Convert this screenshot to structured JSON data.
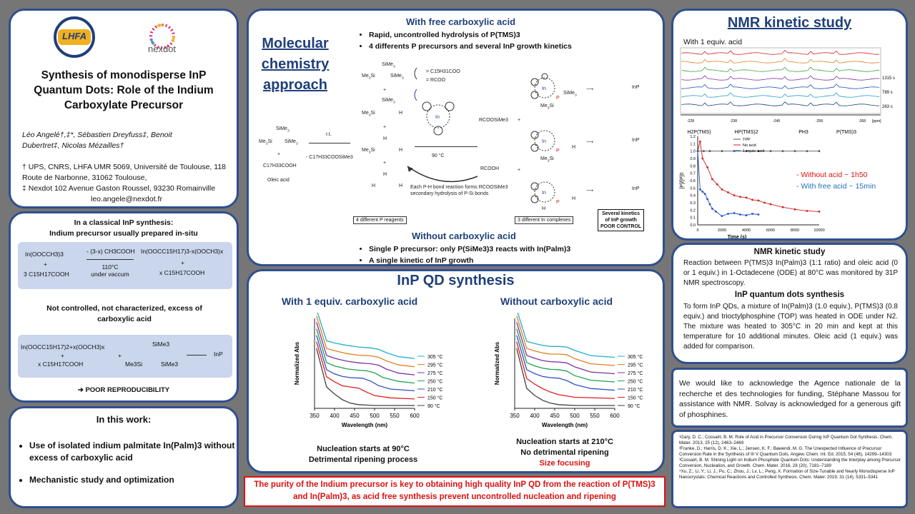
{
  "colors": {
    "panel_border": "#2f4f8f",
    "title_blue": "#1f3f7a",
    "accent_red": "#d11111",
    "bg": "#767676"
  },
  "logos": {
    "lhfa": "LHFA",
    "nexdot": "nexdot"
  },
  "title": {
    "line1": "Synthesis of monodisperse InP",
    "line2": "Quantum Dots: Role of the Indium",
    "line3": "Carboxylate Precursor"
  },
  "authors": {
    "line1": "Léo Angelé†,‡*,  Sébastien Dreyfuss‡,  Benoit",
    "line2": "Dubertret‡,  Nicolas Mézailles†"
  },
  "affiliations": {
    "a1": "† UPS, CNRS, LHFA UMR 5069, Université de Toulouse, 118 Route de Narbonne, 31062 Toulouse,",
    "a2": "‡ Nexdot 102 Avenue Gaston Roussel, 93230 Romainville",
    "email": "leo.angele@nexdot.fr"
  },
  "classical": {
    "heading1": "In a classical  InP synthesis:",
    "heading2": "Indium precursor usually  prepared in-situ",
    "r1_left": "In(OOCCH3)3",
    "r1_plus": "+",
    "r1_acid": "3 C15H17COOH",
    "r1_above": "- (3-x) CH3COOH",
    "r1_below1": "110°C",
    "r1_below2": "under vaccum",
    "r1_prod": "In(OOCC15H17)3-x(OOCH3)x",
    "r1_prod_plus": "+",
    "r1_prod2": "x C15H17COOH",
    "note": "Not controlled, not characterized, excess of carboxylic  acid",
    "r2_left": "In(OOCC15H17)2+x(OOCH3)x",
    "r2_plus": "+",
    "r2_acid": "x C15H17COOH",
    "r2_plus2": "+",
    "r2_p": "SiMe3",
    "r2_p2": "Me3Si",
    "r2_p3": "SiMe3",
    "r2_prod": "InP",
    "poor": "➔ POOR REPRODUCIBILITY"
  },
  "this_work": {
    "heading": "In this work:",
    "b1": "Use of isolated indium palmitate In(Palm)3 without excess of carboxylic acid",
    "b2": "Mechanistic study and optimization"
  },
  "molecular": {
    "title": "Molecular chemistry approach",
    "free_heading": "With free carboxylic acid",
    "free_b1": "Rapid, uncontrolled hydrolysis of P(TMS)3",
    "free_b2": "4 differents P precursors and several InP growth kinetics",
    "rt": "r.t.",
    "minus": "- C17H33COOSiMe3",
    "oleic1": "C17H33COOH",
    "oleic2": "Oleic acid",
    "temp": "90 °C",
    "rcooh": "RCOOH",
    "rcoosime3": "RCOOSiMe3",
    "legend1": "= C15H31COO",
    "legend2": "= RCOO",
    "ph_note1": "Each P-H bond reaction forms RCOOSiMe3",
    "ph_note2": "secondary hydrolysis of P-Si bonds",
    "box1": "4 different P reagents",
    "box2": "3 different In complexes",
    "box3a": "Several kinetics",
    "box3b": "of InP growth",
    "box3c": "POOR CONTROL",
    "inp": "InP",
    "without_heading": "Without carboxylic acid",
    "without_b1": "Single P precursor: only P(SiMe3)3 reacts with In(Palm)3",
    "without_b2": "A single kinetic of InP growth"
  },
  "synthesis": {
    "title": "InP QD synthesis",
    "left_heading": "With 1 equiv. carboxylic acid",
    "right_heading": "Without carboxylic acid",
    "left_cap1": "Nucleation starts at 90°C",
    "left_cap2": "Detrimental ripening process",
    "right_cap1": "Nucleation starts at 210°C",
    "right_cap2": "No detrimental ripening",
    "right_cap3": "Size focusing",
    "ylabel": "Normalized Abs",
    "xlabel": "Wavelength (nm)"
  },
  "conclusion": {
    "text": "The purity of the Indium precursor is key to obtaining high quality InP QD from the reaction of P(TMS)3 and In(Palm)3, as acid free synthesis prevent uncontrolled nucleation and ripening"
  },
  "nmr": {
    "title": "NMR kinetic study",
    "sub": "With 1 equiv. acid",
    "times": [
      "1315 s",
      "789 s",
      "263 s"
    ],
    "ppm_ticks": [
      "-228",
      "-238",
      "-248",
      "-258",
      "-268"
    ],
    "ppm_unit": "[ppm]",
    "species": [
      "H2P(TMS)",
      "HP(TMS)2",
      "PH3",
      "P(TMS)3"
    ],
    "legend": [
      "TPP",
      "No acid",
      "1 equiv. acid"
    ],
    "note1": "- Without acid  ~ 1h50",
    "note2": "- With free acid ~ 15min",
    "ylabel": "[P]/[P]0",
    "xlabel": "Time (s)"
  },
  "nmr_text": {
    "h1": "NMR kinetic study",
    "p1": "Reaction between P(TMS)3 In(Palm)3 (1:1 ratio) and oleic acid (0 or 1 equiv.) in 1-Octadecene (ODE) at 80°C was monitored by 31P NMR spectroscopy.",
    "h2": "InP quantum dots synthesis",
    "p2": "To form InP QDs, a mixture of In(Palm)3 (1.0 equiv.),  P(TMS)3 (0.8 equiv.) and trioctylphosphine (TOP) was heated in ODE under N2. The mixture was heated to 305°C in 20 min and kept at this temperature for 10 additional minutes. Oleic acid (1 equiv.) was added for comparison."
  },
  "ack": {
    "text": "We would like to acknowledge the Agence nationale de la recherche et des technologies for funding, Stéphane Massou for assistance with NMR. Solvay is acknowledged for a generous gift of phosphines."
  },
  "refs": [
    "¹Gary, D. C.; Cossairt, B. M. Role of Acid in Precursor Conversion During InP Quantum Dot Synthesis. Chem. Mater. 2013, 25 (12), 2463–2469",
    "²Franke, D.; Harris, D. K.; Xie, L.; Jensen, K. F.; Bawendi, M. G. The Unexpected Influence of Precursor Conversion Rate in the Synthesis of III V Quantum Dots. Angew. Chem. Int. Ed. 2015, 54 (48), 14299–14303",
    "³Cossairt, B. M. Shining Light on Indium Phosphide Quantum Dots: Understanding the Interplay among Precursor Conversion, Nucleation, and Growth. Chem. Mater. 2016, 28 (20), 7181–7189",
    "⁴Xu, Z.; Li, Y.; Li, J.; Pu, C.; Zhou, J.; Lv, L.; Peng, X. Formation of Size-Tunable and Nearly Monodisperse InP Nanocrystals: Chemical Reactions and Controlled Synthesis. Chem. Mater. 2019, 31 (14), 5331–5341"
  ],
  "chart_data": [
    {
      "type": "line",
      "name": "With 1 equiv. carboxylic acid",
      "xlabel": "Wavelength (nm)",
      "ylabel": "Normalized Abs",
      "xlim": [
        350,
        600
      ],
      "x_ticks": [
        350,
        400,
        450,
        500,
        550,
        600
      ],
      "series": [
        {
          "name": "90 °C",
          "color": "#404040",
          "x": [
            355,
            380,
            400,
            420,
            440,
            460,
            500,
            600
          ],
          "y": [
            1.0,
            0.65,
            0.4,
            0.2,
            0.08,
            0.03,
            0.0,
            0.0
          ]
        },
        {
          "name": "150 °C",
          "color": "#e02020",
          "x": [
            355,
            380,
            400,
            420,
            440,
            460,
            480,
            500,
            540,
            600
          ],
          "y": [
            1.0,
            0.78,
            0.6,
            0.46,
            0.42,
            0.38,
            0.24,
            0.12,
            0.04,
            0.0
          ]
        },
        {
          "name": "210 °C",
          "color": "#3050c0",
          "x": [
            355,
            380,
            400,
            420,
            440,
            470,
            490,
            510,
            540,
            600
          ],
          "y": [
            1.0,
            0.8,
            0.65,
            0.56,
            0.52,
            0.5,
            0.4,
            0.24,
            0.12,
            0.06
          ]
        },
        {
          "name": "250 °C",
          "color": "#20a050",
          "x": [
            355,
            380,
            400,
            430,
            460,
            480,
            500,
            520,
            560,
            600
          ],
          "y": [
            1.0,
            0.82,
            0.7,
            0.6,
            0.55,
            0.53,
            0.46,
            0.3,
            0.16,
            0.1
          ]
        },
        {
          "name": "275 °C",
          "color": "#8030a0",
          "x": [
            355,
            380,
            400,
            430,
            460,
            490,
            510,
            530,
            560,
            600
          ],
          "y": [
            1.0,
            0.84,
            0.74,
            0.64,
            0.58,
            0.55,
            0.5,
            0.36,
            0.22,
            0.16
          ]
        },
        {
          "name": "295 °C",
          "color": "#e08020",
          "x": [
            355,
            380,
            400,
            430,
            460,
            490,
            510,
            530,
            560,
            600
          ],
          "y": [
            1.0,
            0.86,
            0.78,
            0.68,
            0.62,
            0.6,
            0.55,
            0.42,
            0.28,
            0.22
          ]
        },
        {
          "name": "305 °C",
          "color": "#20b0c8",
          "x": [
            355,
            380,
            400,
            430,
            460,
            490,
            510,
            530,
            560,
            600
          ],
          "y": [
            1.0,
            0.9,
            0.82,
            0.74,
            0.68,
            0.65,
            0.6,
            0.48,
            0.34,
            0.28
          ]
        }
      ]
    },
    {
      "type": "line",
      "name": "Without carboxylic acid",
      "xlabel": "Wavelength (nm)",
      "ylabel": "Normalized Abs",
      "xlim": [
        350,
        600
      ],
      "x_ticks": [
        350,
        400,
        450,
        500,
        550,
        600
      ],
      "series": [
        {
          "name": "90 °C",
          "color": "#404040",
          "x": [
            355,
            380,
            400,
            420,
            440,
            460,
            500,
            600
          ],
          "y": [
            1.0,
            0.6,
            0.35,
            0.18,
            0.08,
            0.03,
            0.0,
            0.0
          ]
        },
        {
          "name": "150 °C",
          "color": "#e02020",
          "x": [
            355,
            380,
            400,
            420,
            440,
            460,
            500,
            600
          ],
          "y": [
            1.0,
            0.72,
            0.52,
            0.36,
            0.24,
            0.15,
            0.06,
            0.02
          ]
        },
        {
          "name": "210 °C",
          "color": "#3050c0",
          "x": [
            355,
            380,
            400,
            420,
            440,
            460,
            480,
            500,
            540,
            600
          ],
          "y": [
            1.0,
            0.8,
            0.66,
            0.56,
            0.52,
            0.5,
            0.42,
            0.28,
            0.14,
            0.08
          ]
        },
        {
          "name": "250 °C",
          "color": "#20a050",
          "x": [
            355,
            380,
            400,
            420,
            440,
            460,
            480,
            500,
            540,
            600
          ],
          "y": [
            1.0,
            0.82,
            0.7,
            0.62,
            0.58,
            0.57,
            0.52,
            0.36,
            0.2,
            0.14
          ]
        },
        {
          "name": "275 °C",
          "color": "#8030a0",
          "x": [
            355,
            380,
            400,
            420,
            440,
            460,
            480,
            500,
            540,
            600
          ],
          "y": [
            1.0,
            0.84,
            0.74,
            0.66,
            0.62,
            0.61,
            0.58,
            0.44,
            0.26,
            0.2
          ]
        },
        {
          "name": "295 °C",
          "color": "#e08020",
          "x": [
            355,
            380,
            400,
            420,
            440,
            460,
            480,
            500,
            540,
            600
          ],
          "y": [
            1.0,
            0.86,
            0.77,
            0.7,
            0.66,
            0.66,
            0.64,
            0.5,
            0.32,
            0.26
          ]
        },
        {
          "name": "305 °C",
          "color": "#20b0c8",
          "x": [
            355,
            380,
            400,
            420,
            440,
            460,
            480,
            500,
            540,
            600
          ],
          "y": [
            1.0,
            0.88,
            0.8,
            0.74,
            0.7,
            0.7,
            0.68,
            0.56,
            0.38,
            0.32
          ]
        }
      ]
    },
    {
      "type": "scatter",
      "name": "NMR kinetics",
      "xlabel": "Time (s)",
      "ylabel": "[P]/[P]0",
      "xlim": [
        0,
        10000
      ],
      "ylim": [
        0,
        1.2
      ],
      "x_ticks": [
        0,
        2000,
        4000,
        6000,
        8000,
        10000
      ],
      "y_ticks": [
        0,
        0.1,
        0.2,
        0.3,
        0.4,
        0.5,
        0.6,
        0.7,
        0.8,
        0.9,
        1.0,
        1.1,
        1.2
      ],
      "series": [
        {
          "name": "TPP",
          "color": "#555555",
          "x": [
            0,
            500,
            1000,
            2000,
            3000,
            4000,
            5000,
            6000,
            7000,
            8000,
            9000,
            10000
          ],
          "y": [
            1.0,
            1.0,
            1.0,
            1.0,
            1.0,
            1.0,
            1.0,
            1.0,
            1.0,
            1.0,
            1.0,
            1.0
          ]
        },
        {
          "name": "No acid",
          "color": "#d02020",
          "x": [
            0,
            200,
            400,
            800,
            1200,
            1600,
            2000,
            2500,
            3000,
            3500,
            4000,
            4500,
            5000,
            5500,
            6000,
            7000,
            8000,
            9000,
            10000
          ],
          "y": [
            1.0,
            1.13,
            0.9,
            0.78,
            0.62,
            0.55,
            0.48,
            0.44,
            0.4,
            0.38,
            0.37,
            0.34,
            0.33,
            0.3,
            0.28,
            0.24,
            0.21,
            0.19,
            0.18
          ]
        },
        {
          "name": "1 equiv. acid",
          "color": "#2050c0",
          "x": [
            0,
            200,
            400,
            600,
            800,
            1000,
            1200,
            1500,
            2000,
            2500,
            3000,
            3500,
            4000,
            4500,
            5000
          ],
          "y": [
            1.0,
            0.48,
            0.45,
            0.42,
            0.35,
            0.28,
            0.22,
            0.18,
            0.12,
            0.15,
            0.16,
            0.14,
            0.13,
            0.15,
            0.14
          ]
        }
      ]
    }
  ]
}
